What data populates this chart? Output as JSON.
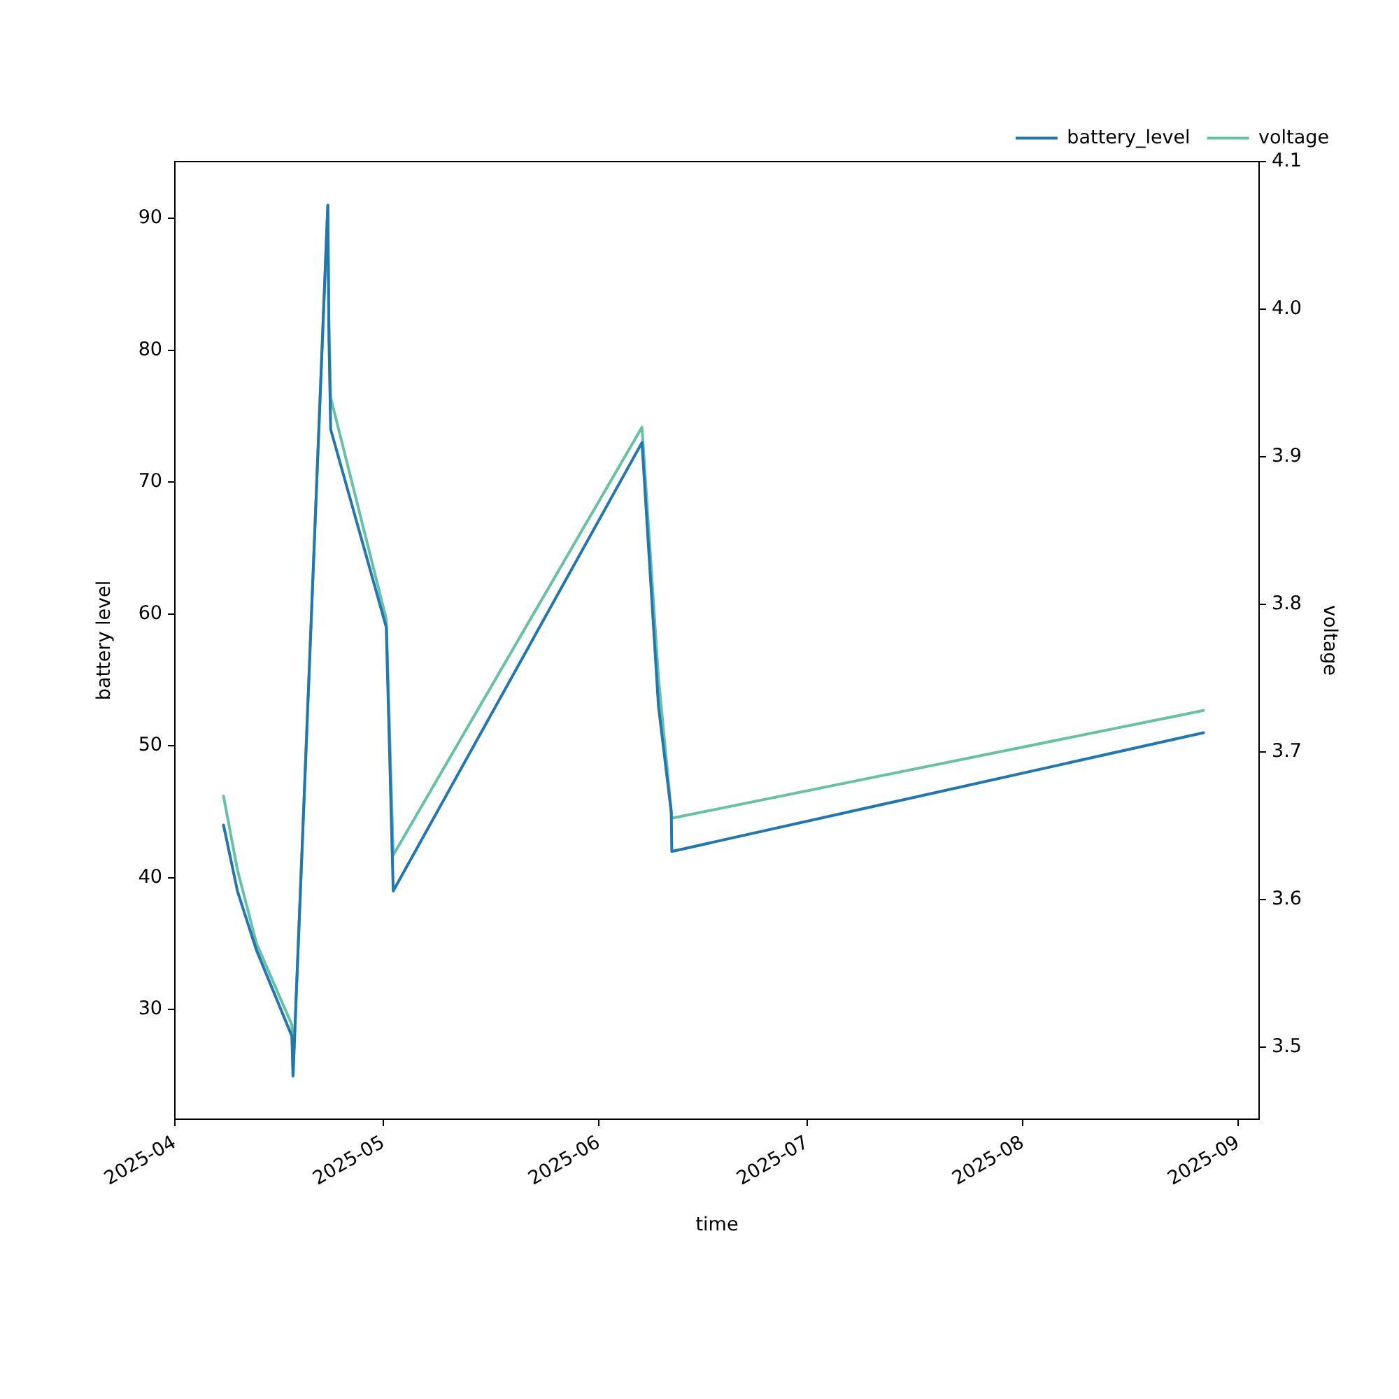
{
  "chart_data": {
    "type": "line",
    "xlabel": "time",
    "ylabel": "battery level",
    "y2label": "voltage",
    "legend": "top right",
    "x": [
      "2025-04-08T00:00",
      "2025-04-10T00:00",
      "2025-04-12T18:00",
      "2025-04-17T20:00",
      "2025-04-18T00:00",
      "2025-04-23T00:00",
      "2025-04-23T04:00",
      "2025-04-23T10:00",
      "2025-05-01T10:00",
      "2025-05-02T10:00",
      "2025-06-07T05:00",
      "2025-06-09T14:00",
      "2025-06-11T10:00",
      "2025-06-11T12:00",
      "2025-08-27T00:00"
    ],
    "series": [
      {
        "name": "battery_level",
        "color": "#1f77b4",
        "values": [
          44,
          39,
          34.5,
          28,
          25,
          91,
          81,
          74,
          59,
          39,
          73,
          53,
          45,
          42,
          51
        ]
      },
      {
        "name": "voltage",
        "color": "#66c2a5",
        "axis": "y2",
        "values": [
          3.67,
          3.62,
          3.57,
          3.515,
          3.48,
          4.07,
          3.99,
          3.94,
          3.79,
          3.63,
          3.92,
          3.75,
          3.66,
          3.655,
          3.728
        ]
      }
    ],
    "xlim": [
      "2025-04-01",
      "2025-09-04"
    ],
    "xticks": [
      "2025-04",
      "2025-05",
      "2025-06",
      "2025-07",
      "2025-08",
      "2025-09"
    ],
    "ylim": [
      21.7,
      94.3
    ],
    "yticks": [
      30,
      40,
      50,
      60,
      70,
      80,
      90
    ],
    "y2lim": [
      3.451,
      4.1
    ],
    "y2ticks": [
      3.5,
      3.6,
      3.7,
      3.8,
      3.9,
      {
        "value": 4,
        "label": "4.0"
      },
      4.1
    ]
  }
}
